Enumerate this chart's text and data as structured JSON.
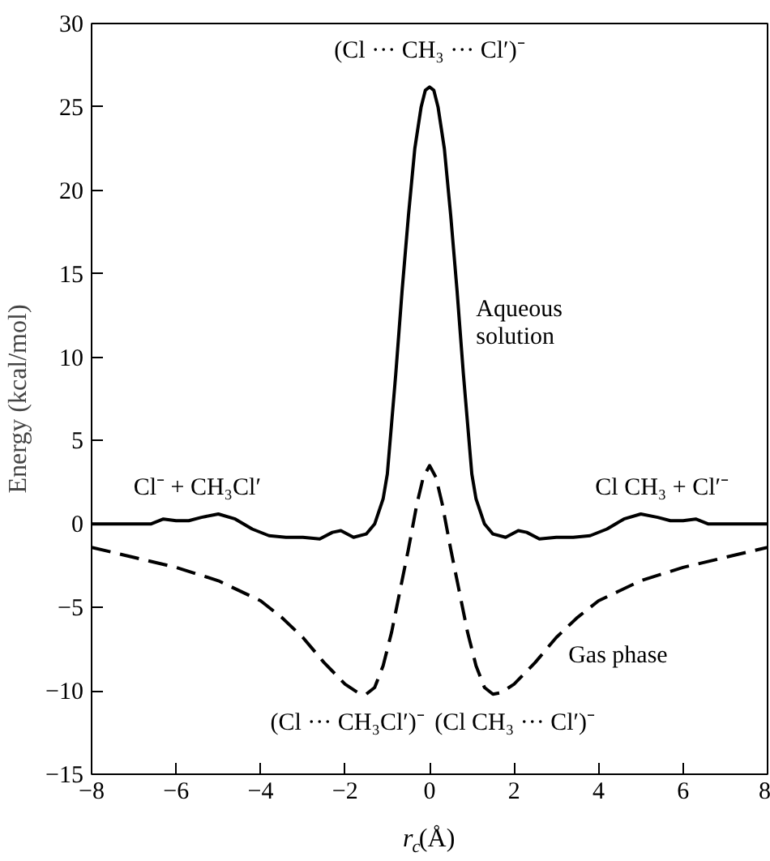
{
  "chart_data": {
    "type": "line",
    "xlabel": "r$_{c}$(Å)",
    "ylabel": "Energy (kcal/mol)",
    "xlim": [
      -8,
      8
    ],
    "ylim": [
      -15,
      30
    ],
    "xticks": [
      {
        "value": -8,
        "label": "−8"
      },
      {
        "value": -6,
        "label": "−6"
      },
      {
        "value": -4,
        "label": "−4"
      },
      {
        "value": -2,
        "label": "−2"
      },
      0,
      2,
      4,
      6,
      8
    ],
    "yticks": [
      {
        "value": -15,
        "label": "−15"
      },
      {
        "value": -10,
        "label": "−10"
      },
      {
        "value": -5,
        "label": "−5"
      },
      0,
      5,
      10,
      15,
      20,
      25,
      30
    ],
    "grid": false,
    "series": [
      {
        "color": "#000000",
        "line_style": "solid",
        "x": [
          -8,
          -6.6,
          -6.3,
          -6,
          -5.7,
          -5.4,
          -5,
          -4.6,
          -4.2,
          -3.8,
          -3.4,
          -3,
          -2.6,
          -2.3,
          -2.1,
          -1.8,
          -1.5,
          -1.3,
          -1.1,
          -1.0,
          -0.9,
          -0.8,
          -0.65,
          -0.5,
          -0.35,
          -0.2,
          -0.1,
          0,
          0.1,
          0.2,
          0.35,
          0.5,
          0.65,
          0.8,
          0.9,
          1.0,
          1.1,
          1.3,
          1.5,
          1.8,
          2.1,
          2.3,
          2.6,
          3,
          3.4,
          3.8,
          4.2,
          4.6,
          5,
          5.4,
          5.7,
          6,
          6.3,
          6.6,
          8
        ],
        "values": [
          0,
          0,
          0.3,
          0.2,
          0.2,
          0.4,
          0.6,
          0.3,
          -0.3,
          -0.7,
          -0.8,
          -0.8,
          -0.9,
          -0.5,
          -0.4,
          -0.8,
          -0.6,
          0,
          1.5,
          3,
          6,
          9,
          14,
          18.5,
          22.5,
          25,
          26,
          26.2,
          26,
          25,
          22.5,
          18.5,
          14,
          9,
          6,
          3,
          1.5,
          0,
          -0.6,
          -0.8,
          -0.4,
          -0.5,
          -0.9,
          -0.8,
          -0.8,
          -0.7,
          -0.3,
          0.3,
          0.6,
          0.4,
          0.2,
          0.2,
          0.3,
          0,
          0
        ]
      },
      {
        "color": "#000000",
        "line_style": "dashed",
        "x": [
          -8,
          -7,
          -6,
          -5,
          -4,
          -3.5,
          -3,
          -2.5,
          -2,
          -1.7,
          -1.5,
          -1.3,
          -1.1,
          -0.9,
          -0.7,
          -0.5,
          -0.3,
          -0.15,
          0,
          0.15,
          0.3,
          0.5,
          0.7,
          0.9,
          1.1,
          1.3,
          1.5,
          1.7,
          2,
          2.5,
          3,
          3.5,
          4,
          5,
          6,
          7,
          8
        ],
        "values": [
          -1.4,
          -2,
          -2.6,
          -3.4,
          -4.6,
          -5.6,
          -6.8,
          -8.3,
          -9.6,
          -10.1,
          -10.2,
          -9.8,
          -8.5,
          -6.5,
          -4,
          -1.5,
          1.2,
          2.8,
          3.5,
          2.8,
          1.2,
          -1.5,
          -4,
          -6.5,
          -8.5,
          -9.8,
          -10.2,
          -10.1,
          -9.6,
          -8.3,
          -6.8,
          -5.6,
          -4.6,
          -3.4,
          -2.6,
          -2,
          -1.4
        ]
      }
    ],
    "annotations": [
      {
        "text": "(Cl ··· CH₃ ··· Cl′)⁻",
        "x": 0,
        "y": 26.2
      },
      "Aqueous\nsolution",
      {
        "text": "Cl⁻ + CH₃Cl′",
        "x": -5.5,
        "y": 0.6
      },
      {
        "text": "Cl CH₃ + Cl′⁻",
        "x": 5.5,
        "y": 0.6
      },
      {
        "text": "Gas phase",
        "x": 2.9,
        "y": -7.5
      },
      {
        "text": "(Cl ··· CH₃Cl′)⁻",
        "x": -1.5,
        "y": -10.2
      },
      {
        "text": "(Cl CH₃ ··· Cl′)⁻",
        "x": 1.5,
        "y": -10.2
      }
    ]
  }
}
